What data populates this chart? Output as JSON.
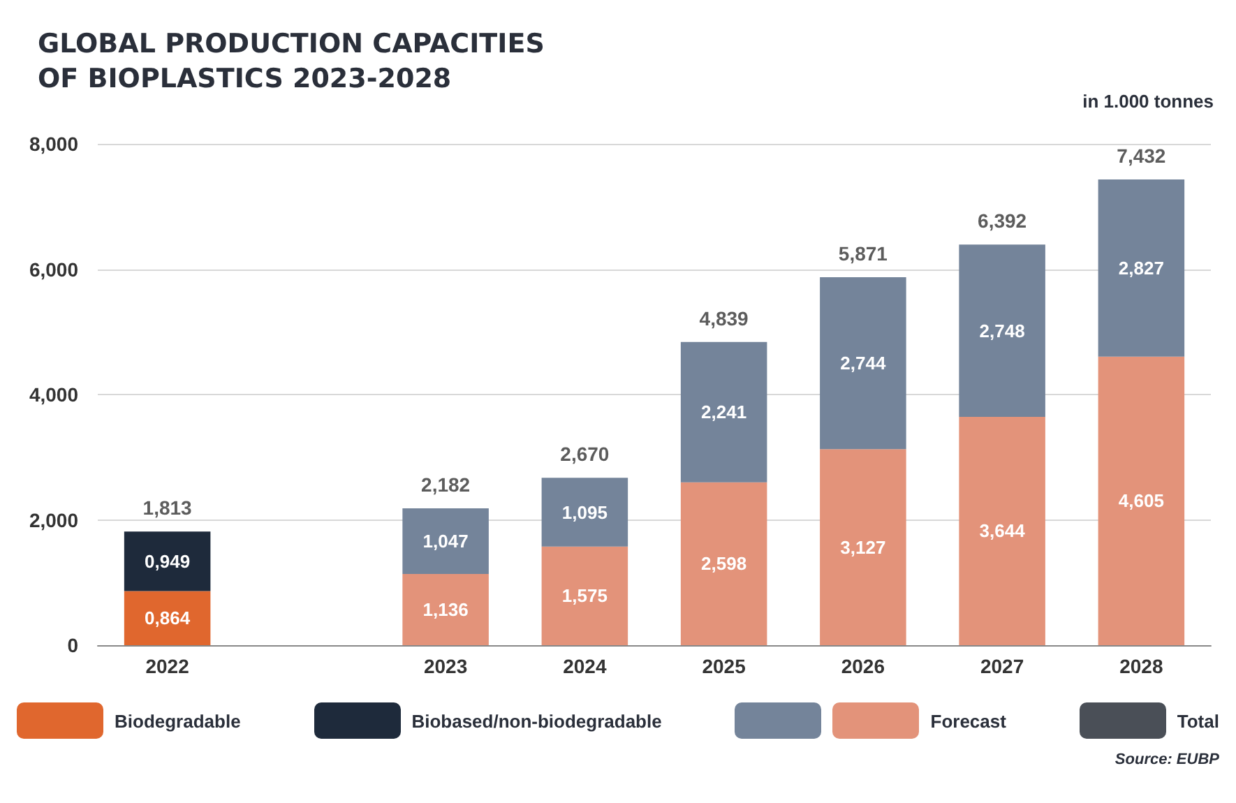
{
  "chart_data": {
    "type": "bar",
    "title": "GLOBAL PRODUCTION CAPACITIES OF BIOPLASTICS 2023-2028",
    "categories": [
      "2022",
      null,
      "2023",
      "2024",
      "2025",
      "2026",
      "2027",
      "2028"
    ],
    "stacked": true,
    "series": [
      {
        "name": "Biodegradable",
        "color": "#e0672e",
        "values": [
          0.864,
          null,
          null,
          null,
          null,
          null,
          null,
          null
        ],
        "value_labels": [
          "0,864",
          null,
          null,
          null,
          null,
          null,
          null,
          null
        ]
      },
      {
        "name": "Biobased/non-biodegradable",
        "color": "#1e2a3b",
        "values": [
          0.949,
          null,
          null,
          null,
          null,
          null,
          null,
          null
        ],
        "value_labels": [
          "0,949",
          null,
          null,
          null,
          null,
          null,
          null,
          null
        ]
      },
      {
        "name": "Forecast",
        "color": "#e3937a",
        "values": [
          null,
          null,
          1.136,
          1.575,
          2.598,
          3.127,
          3.644,
          4.605
        ],
        "value_labels": [
          null,
          null,
          "1,136",
          "1,575",
          "2,598",
          "3,127",
          "3,644",
          "4,605"
        ]
      },
      {
        "color": "#74849a",
        "values": [
          null,
          null,
          1.047,
          1.095,
          2.241,
          2.744,
          2.748,
          2.827
        ],
        "value_labels": [
          null,
          null,
          "1,047",
          "1,095",
          "2,241",
          "2,744",
          "2,748",
          "2,827"
        ]
      }
    ],
    "totals": [
      "1,813",
      null,
      "2,182",
      "2,670",
      "4,839",
      "5,871",
      "6,392",
      "7,432"
    ],
    "ylim": [
      0,
      8
    ],
    "yticks": [
      0,
      {
        "value": 2,
        "label": "2,000"
      },
      {
        "value": 4,
        "label": "4,000"
      },
      {
        "value": 6,
        "label": "6,000"
      },
      {
        "value": 8,
        "label": "8,000"
      }
    ],
    "grid": "y",
    "legend": "bottom",
    "annotations": [
      "in 1.000 tonnes",
      "Total",
      "Source: EUBP"
    ]
  }
}
